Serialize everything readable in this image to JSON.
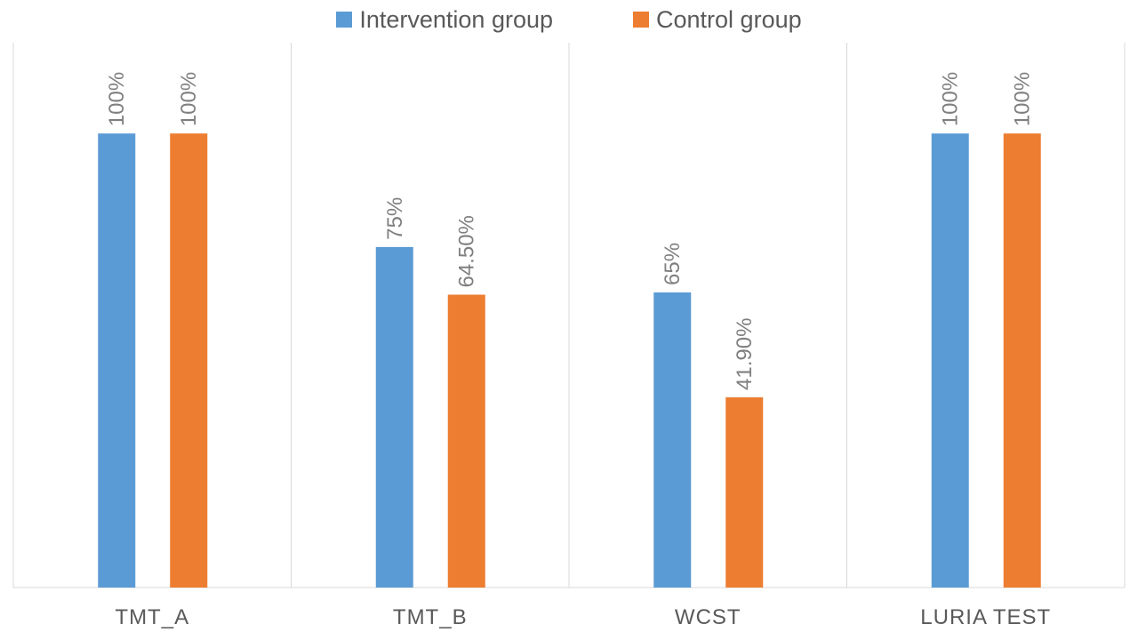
{
  "legend": {
    "intervention_label": "Intervention group",
    "control_label": "Control group"
  },
  "colors": {
    "intervention": "#5b9bd5",
    "control": "#ed7d31",
    "grid": "#d9d9d9"
  },
  "chart_data": {
    "type": "bar",
    "categories": [
      "TMT_A",
      "TMT_B",
      "WCST",
      "LURIA TEST"
    ],
    "series": [
      {
        "name": "Intervention group",
        "values": [
          100,
          75,
          65,
          100
        ],
        "labels": [
          "100%",
          "75%",
          "65%",
          "100%"
        ]
      },
      {
        "name": "Control group",
        "values": [
          100,
          64.5,
          41.9,
          100
        ],
        "labels": [
          "100%",
          "64.50%",
          "41.90%",
          "100%"
        ]
      }
    ],
    "ylim": [
      0,
      120
    ],
    "grid": "vertical category separators",
    "legend_position": "top-center"
  }
}
